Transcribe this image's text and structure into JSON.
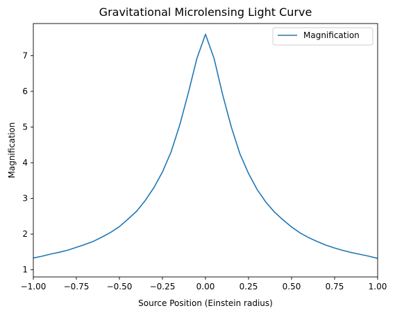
{
  "chart_data": {
    "type": "line",
    "title": "Gravitational Microlensing Light Curve",
    "xlabel": "Source Position (Einstein radius)",
    "ylabel": "Magnification",
    "xlim": [
      -1.0,
      1.0
    ],
    "ylim": [
      0.8,
      7.9
    ],
    "x_ticks": [
      -1.0,
      -0.75,
      -0.5,
      -0.25,
      0.0,
      0.25,
      0.5,
      0.75,
      1.0
    ],
    "x_tick_labels": [
      "−1.00",
      "−0.75",
      "−0.50",
      "−0.25",
      "0.00",
      "0.25",
      "0.50",
      "0.75",
      "1.00"
    ],
    "y_ticks": [
      1,
      2,
      3,
      4,
      5,
      6,
      7
    ],
    "y_tick_labels": [
      "1",
      "2",
      "3",
      "4",
      "5",
      "6",
      "7"
    ],
    "grid": false,
    "legend_position": "top-right",
    "series": [
      {
        "name": "Magnification",
        "color": "#1f77b4",
        "points": [
          [
            -1.0,
            1.33
          ],
          [
            -0.95,
            1.38
          ],
          [
            -0.9,
            1.44
          ],
          [
            -0.85,
            1.49
          ],
          [
            -0.8,
            1.55
          ],
          [
            -0.75,
            1.63
          ],
          [
            -0.7,
            1.71
          ],
          [
            -0.65,
            1.8
          ],
          [
            -0.6,
            1.92
          ],
          [
            -0.55,
            2.05
          ],
          [
            -0.5,
            2.21
          ],
          [
            -0.45,
            2.42
          ],
          [
            -0.4,
            2.64
          ],
          [
            -0.35,
            2.94
          ],
          [
            -0.3,
            3.3
          ],
          [
            -0.25,
            3.74
          ],
          [
            -0.2,
            4.3
          ],
          [
            -0.15,
            5.05
          ],
          [
            -0.1,
            5.95
          ],
          [
            -0.05,
            6.92
          ],
          [
            0.0,
            7.6
          ],
          [
            0.05,
            6.92
          ],
          [
            0.1,
            5.9
          ],
          [
            0.15,
            5.0
          ],
          [
            0.2,
            4.25
          ],
          [
            0.25,
            3.7
          ],
          [
            0.3,
            3.25
          ],
          [
            0.35,
            2.9
          ],
          [
            0.4,
            2.62
          ],
          [
            0.45,
            2.4
          ],
          [
            0.5,
            2.2
          ],
          [
            0.55,
            2.03
          ],
          [
            0.6,
            1.9
          ],
          [
            0.65,
            1.79
          ],
          [
            0.7,
            1.69
          ],
          [
            0.75,
            1.61
          ],
          [
            0.8,
            1.54
          ],
          [
            0.85,
            1.48
          ],
          [
            0.9,
            1.43
          ],
          [
            0.95,
            1.38
          ],
          [
            1.0,
            1.32
          ]
        ]
      }
    ]
  }
}
